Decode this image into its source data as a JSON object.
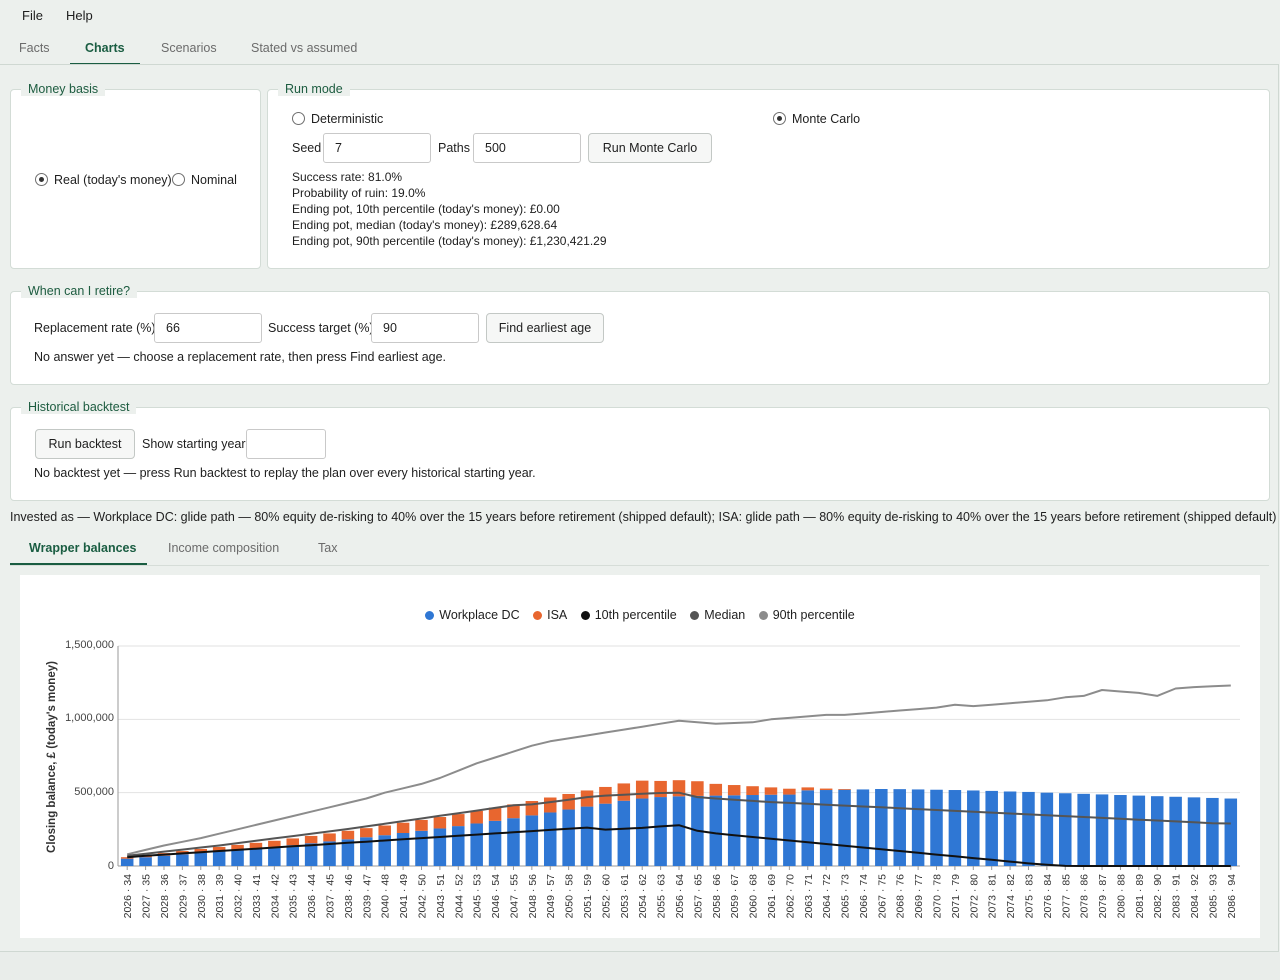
{
  "menu": {
    "file": "File",
    "help": "Help"
  },
  "tabs": [
    "Facts",
    "Charts",
    "Scenarios",
    "Stated vs assumed"
  ],
  "money_basis": {
    "title": "Money basis",
    "options": [
      {
        "label": "Real (today's money)",
        "selected": true
      },
      {
        "label": "Nominal",
        "selected": false
      }
    ]
  },
  "run_mode": {
    "title": "Run mode",
    "options": [
      {
        "label": "Deterministic",
        "selected": false
      },
      {
        "label": "Monte Carlo",
        "selected": true
      }
    ],
    "seed_label": "Seed",
    "seed_value": "7",
    "paths_label": "Paths",
    "paths_value": "500",
    "run_button": "Run Monte Carlo",
    "results": [
      "Success rate: 81.0%",
      "Probability of ruin: 19.0%",
      "Ending pot, 10th percentile (today's money): £0.00",
      "Ending pot, median (today's money): £289,628.64",
      "Ending pot, 90th percentile (today's money): £1,230,421.29"
    ]
  },
  "retire": {
    "title": "When can I retire?",
    "replacement_label": "Replacement rate (%)",
    "replacement_value": "66",
    "success_label": "Success target (%)",
    "success_value": "90",
    "find_button": "Find earliest age",
    "status": "No answer yet — choose a replacement rate, then press Find earliest age."
  },
  "backtest": {
    "title": "Historical backtest",
    "run_button": "Run backtest",
    "show_label": "Show starting year",
    "show_value": "",
    "status": "No backtest yet — press Run backtest to replay the plan over every historical starting year."
  },
  "invested_as": "Invested as — Workplace DC: glide path — 80% equity de-risking to 40% over the 15 years before retirement (shipped default); ISA: glide path — 80% equity de-risking to 40% over the 15 years before retirement (shipped default)",
  "chart_tabs": [
    "Wrapper balances",
    "Income composition",
    "Tax"
  ],
  "colors": {
    "accent": "#1a5d42",
    "workplace_dc": "#2f77d4",
    "isa": "#e8662f",
    "p10": "#111111",
    "median": "#555555",
    "p90": "#8c8c8c"
  },
  "chart_data": {
    "type": "bar",
    "stacked": true,
    "title": "",
    "xlabel": "",
    "ylabel": "Closing balance, £ (today's money)",
    "ylim": [
      0,
      1500000
    ],
    "yticks": [
      "0",
      "500,000",
      "1,000,000",
      "1,500,000"
    ],
    "grid": true,
    "legend_position": "top",
    "categories": [
      "2026 · 34",
      "2027 · 35",
      "2028 · 36",
      "2029 · 37",
      "2030 · 38",
      "2031 · 39",
      "2032 · 40",
      "2033 · 41",
      "2034 · 42",
      "2035 · 43",
      "2036 · 44",
      "2037 · 45",
      "2038 · 46",
      "2039 · 47",
      "2040 · 48",
      "2041 · 49",
      "2042 · 50",
      "2043 · 51",
      "2044 · 52",
      "2045 · 53",
      "2046 · 54",
      "2047 · 55",
      "2048 · 56",
      "2049 · 57",
      "2050 · 58",
      "2051 · 59",
      "2052 · 60",
      "2053 · 61",
      "2054 · 62",
      "2055 · 63",
      "2056 · 64",
      "2057 · 65",
      "2058 · 66",
      "2059 · 67",
      "2060 · 68",
      "2061 · 69",
      "2062 · 70",
      "2063 · 71",
      "2064 · 72",
      "2065 · 73",
      "2066 · 74",
      "2067 · 75",
      "2068 · 76",
      "2069 · 77",
      "2070 · 78",
      "2071 · 79",
      "2072 · 80",
      "2073 · 81",
      "2074 · 82",
      "2075 · 83",
      "2076 · 84",
      "2077 · 85",
      "2078 · 86",
      "2079 · 87",
      "2080 · 88",
      "2081 · 89",
      "2082 · 90",
      "2083 · 91",
      "2084 · 92",
      "2085 · 93",
      "2086 · 94"
    ],
    "series": [
      {
        "name": "Workplace DC",
        "kind": "bar",
        "values": [
          50000,
          60000,
          70000,
          80000,
          90000,
          100000,
          110000,
          120000,
          130000,
          142000,
          155000,
          168000,
          182000,
          196000,
          210000,
          225000,
          240000,
          256000,
          272000,
          290000,
          308000,
          326000,
          345000,
          365000,
          385000,
          405000,
          425000,
          445000,
          460000,
          470000,
          475000,
          478000,
          480000,
          482000,
          484000,
          486000,
          487000,
          516000,
          518000,
          520000,
          522000,
          525000,
          524000,
          522000,
          520000,
          518000,
          515000,
          512000,
          508000,
          505000,
          500000,
          496000,
          492000,
          488000,
          484000,
          480000,
          476000,
          472000,
          468000,
          464000,
          460000
        ]
      },
      {
        "name": "ISA",
        "kind": "bar",
        "values": [
          10000,
          14000,
          18000,
          22000,
          26000,
          30000,
          34000,
          38000,
          42000,
          46000,
          50000,
          54000,
          58000,
          62000,
          66000,
          70000,
          74000,
          78000,
          82000,
          86000,
          90000,
          94000,
          98000,
          102000,
          106000,
          110000,
          114000,
          118000,
          122000,
          110000,
          110000,
          100000,
          80000,
          70000,
          60000,
          50000,
          40000,
          20000,
          10000,
          5000,
          0,
          0,
          0,
          0,
          0,
          0,
          0,
          0,
          0,
          0,
          0,
          0,
          0,
          0,
          0,
          0,
          0,
          0,
          0,
          0,
          0
        ]
      },
      {
        "name": "10th percentile",
        "kind": "line",
        "values": [
          60000,
          70000,
          78000,
          86000,
          94000,
          102000,
          110000,
          118000,
          126000,
          134000,
          142000,
          150000,
          158000,
          166000,
          174000,
          182000,
          190000,
          198000,
          206000,
          214000,
          222000,
          230000,
          238000,
          246000,
          254000,
          262000,
          248000,
          254000,
          260000,
          270000,
          278000,
          240000,
          222000,
          210000,
          198000,
          186000,
          174000,
          162000,
          150000,
          138000,
          126000,
          114000,
          102000,
          90000,
          78000,
          66000,
          54000,
          42000,
          30000,
          18000,
          8000,
          1000,
          0,
          0,
          0,
          0,
          0,
          0,
          0,
          0,
          0
        ]
      },
      {
        "name": "Median",
        "kind": "line",
        "values": [
          70000,
          84000,
          98000,
          112000,
          126000,
          140000,
          156000,
          172000,
          188000,
          204000,
          220000,
          236000,
          252000,
          270000,
          288000,
          306000,
          324000,
          342000,
          360000,
          378000,
          396000,
          414000,
          420000,
          436000,
          452000,
          470000,
          480000,
          486000,
          492000,
          498000,
          500000,
          470000,
          460000,
          452000,
          444000,
          436000,
          430000,
          424000,
          418000,
          412000,
          406000,
          400000,
          394000,
          388000,
          382000,
          376000,
          370000,
          364000,
          358000,
          352000,
          346000,
          340000,
          334000,
          328000,
          322000,
          316000,
          310000,
          304000,
          298000,
          292000,
          289629
        ]
      },
      {
        "name": "90th percentile",
        "kind": "line",
        "values": [
          80000,
          110000,
          140000,
          165000,
          190000,
          220000,
          250000,
          280000,
          310000,
          340000,
          370000,
          400000,
          430000,
          460000,
          500000,
          530000,
          560000,
          600000,
          650000,
          700000,
          740000,
          780000,
          820000,
          850000,
          870000,
          890000,
          910000,
          930000,
          950000,
          970000,
          990000,
          980000,
          970000,
          975000,
          980000,
          1000000,
          1010000,
          1020000,
          1030000,
          1030000,
          1040000,
          1050000,
          1060000,
          1070000,
          1080000,
          1100000,
          1090000,
          1100000,
          1110000,
          1120000,
          1130000,
          1150000,
          1160000,
          1200000,
          1190000,
          1180000,
          1160000,
          1210000,
          1220000,
          1225000,
          1230421
        ]
      }
    ]
  }
}
